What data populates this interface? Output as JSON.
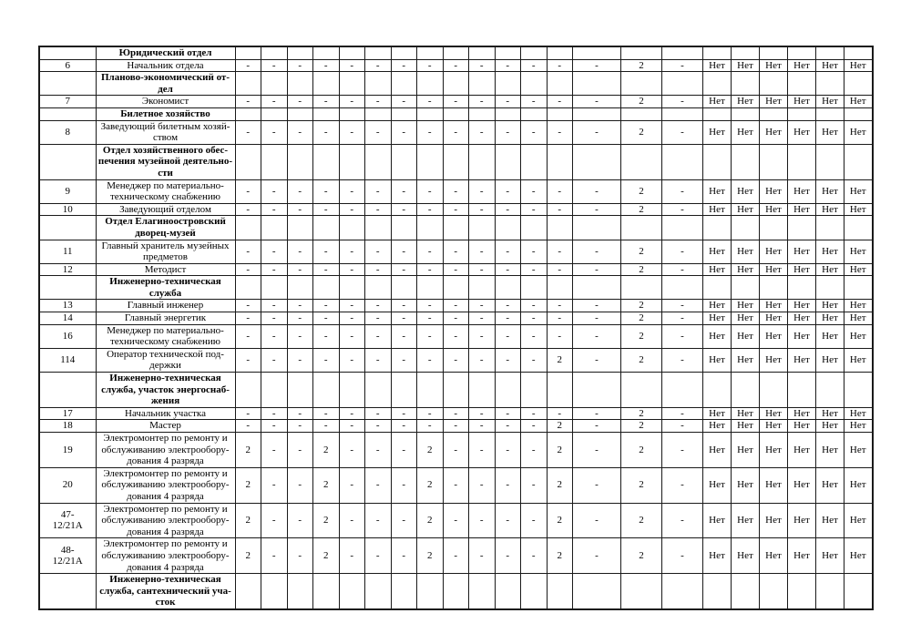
{
  "document": {
    "language": "ru",
    "kind": "staffing-schedule-table-page",
    "net_label": "Нет",
    "dash": "-"
  },
  "table": {
    "rows": [
      {
        "type": "section",
        "num": "",
        "title": "Юридический отдел",
        "cells": [
          "",
          "",
          "",
          "",
          "",
          "",
          "",
          "",
          "",
          "",
          "",
          "",
          "",
          "",
          "",
          "",
          "",
          "",
          "",
          "",
          "",
          ""
        ]
      },
      {
        "type": "data",
        "num": "6",
        "title": "Начальник отдела",
        "cells": [
          "-",
          "-",
          "-",
          "-",
          "-",
          "-",
          "-",
          "-",
          "-",
          "-",
          "-",
          "-",
          "-",
          "-",
          "2",
          "-",
          "Нет",
          "Нет",
          "Нет",
          "Нет",
          "Нет",
          "Нет"
        ]
      },
      {
        "type": "section",
        "num": "",
        "title": "Планово-экономический от-\nдел",
        "cells": [
          "",
          "",
          "",
          "",
          "",
          "",
          "",
          "",
          "",
          "",
          "",
          "",
          "",
          "",
          "",
          "",
          "",
          "",
          "",
          "",
          "",
          ""
        ]
      },
      {
        "type": "data",
        "num": "7",
        "title": "Экономист",
        "cells": [
          "-",
          "-",
          "-",
          "-",
          "-",
          "-",
          "-",
          "-",
          "-",
          "-",
          "-",
          "-",
          "-",
          "-",
          "2",
          "-",
          "Нет",
          "Нет",
          "Нет",
          "Нет",
          "Нет",
          "Нет"
        ]
      },
      {
        "type": "section",
        "num": "",
        "title": "Билетное хозяйство",
        "cells": [
          "",
          "",
          "",
          "",
          "",
          "",
          "",
          "",
          "",
          "",
          "",
          "",
          "",
          "",
          "",
          "",
          "",
          "",
          "",
          "",
          "",
          ""
        ]
      },
      {
        "type": "data",
        "num": "8",
        "title": "Заведующий билетным хозяй-\nством",
        "cells": [
          "-",
          "-",
          "-",
          "-",
          "-",
          "-",
          "-",
          "-",
          "-",
          "-",
          "-",
          "-",
          "-",
          "-",
          "2",
          "-",
          "Нет",
          "Нет",
          "Нет",
          "Нет",
          "Нет",
          "Нет"
        ]
      },
      {
        "type": "section",
        "num": "",
        "title": "Отдел хозяйственного обес-\nпечения музейной деятельно-\nсти",
        "cells": [
          "",
          "",
          "",
          "",
          "",
          "",
          "",
          "",
          "",
          "",
          "",
          "",
          "",
          "",
          "",
          "",
          "",
          "",
          "",
          "",
          "",
          ""
        ]
      },
      {
        "type": "data",
        "num": "9",
        "title": "Менеджер по материально-\nтехническому снабжению",
        "cells": [
          "-",
          "-",
          "-",
          "-",
          "-",
          "-",
          "-",
          "-",
          "-",
          "-",
          "-",
          "-",
          "-",
          "-",
          "2",
          "-",
          "Нет",
          "Нет",
          "Нет",
          "Нет",
          "Нет",
          "Нет"
        ]
      },
      {
        "type": "data",
        "num": "10",
        "title": "Заведующий отделом",
        "cells": [
          "-",
          "-",
          "-",
          "-",
          "-",
          "-",
          "-",
          "-",
          "-",
          "-",
          "-",
          "-",
          "-",
          "-",
          "2",
          "-",
          "Нет",
          "Нет",
          "Нет",
          "Нет",
          "Нет",
          "Нет"
        ]
      },
      {
        "type": "section",
        "num": "",
        "title": "Отдел Елагиноостровский\nдворец-музей",
        "cells": [
          "",
          "",
          "",
          "",
          "",
          "",
          "",
          "",
          "",
          "",
          "",
          "",
          "",
          "",
          "",
          "",
          "",
          "",
          "",
          "",
          "",
          ""
        ]
      },
      {
        "type": "data",
        "num": "11",
        "title": "Главный хранитель музейных\nпредметов",
        "cells": [
          "-",
          "-",
          "-",
          "-",
          "-",
          "-",
          "-",
          "-",
          "-",
          "-",
          "-",
          "-",
          "-",
          "-",
          "2",
          "-",
          "Нет",
          "Нет",
          "Нет",
          "Нет",
          "Нет",
          "Нет"
        ]
      },
      {
        "type": "data",
        "num": "12",
        "title": "Методист",
        "cells": [
          "-",
          "-",
          "-",
          "-",
          "-",
          "-",
          "-",
          "-",
          "-",
          "-",
          "-",
          "-",
          "-",
          "-",
          "2",
          "-",
          "Нет",
          "Нет",
          "Нет",
          "Нет",
          "Нет",
          "Нет"
        ]
      },
      {
        "type": "section",
        "num": "",
        "title": "Инженерно-техническая\nслужба",
        "cells": [
          "",
          "",
          "",
          "",
          "",
          "",
          "",
          "",
          "",
          "",
          "",
          "",
          "",
          "",
          "",
          "",
          "",
          "",
          "",
          "",
          "",
          ""
        ]
      },
      {
        "type": "data",
        "num": "13",
        "title": "Главный инженер",
        "cells": [
          "-",
          "-",
          "-",
          "-",
          "-",
          "-",
          "-",
          "-",
          "-",
          "-",
          "-",
          "-",
          "-",
          "-",
          "2",
          "-",
          "Нет",
          "Нет",
          "Нет",
          "Нет",
          "Нет",
          "Нет"
        ]
      },
      {
        "type": "data",
        "num": "14",
        "title": "Главный энергетик",
        "cells": [
          "-",
          "-",
          "-",
          "-",
          "-",
          "-",
          "-",
          "-",
          "-",
          "-",
          "-",
          "-",
          "-",
          "-",
          "2",
          "-",
          "Нет",
          "Нет",
          "Нет",
          "Нет",
          "Нет",
          "Нет"
        ]
      },
      {
        "type": "data",
        "num": "16",
        "title": "Менеджер по материально-\nтехническому снабжению",
        "cells": [
          "-",
          "-",
          "-",
          "-",
          "-",
          "-",
          "-",
          "-",
          "-",
          "-",
          "-",
          "-",
          "-",
          "-",
          "2",
          "-",
          "Нет",
          "Нет",
          "Нет",
          "Нет",
          "Нет",
          "Нет"
        ]
      },
      {
        "type": "data",
        "num": "114",
        "title": "Оператор технической под-\nдержки",
        "cells": [
          "-",
          "-",
          "-",
          "-",
          "-",
          "-",
          "-",
          "-",
          "-",
          "-",
          "-",
          "-",
          "2",
          "-",
          "2",
          "-",
          "Нет",
          "Нет",
          "Нет",
          "Нет",
          "Нет",
          "Нет"
        ]
      },
      {
        "type": "section",
        "num": "",
        "title": "Инженерно-техническая\nслужба, участок энергоснаб-\nжения",
        "cells": [
          "",
          "",
          "",
          "",
          "",
          "",
          "",
          "",
          "",
          "",
          "",
          "",
          "",
          "",
          "",
          "",
          "",
          "",
          "",
          "",
          "",
          ""
        ]
      },
      {
        "type": "data",
        "num": "17",
        "title": "Начальник участка",
        "cells": [
          "-",
          "-",
          "-",
          "-",
          "-",
          "-",
          "-",
          "-",
          "-",
          "-",
          "-",
          "-",
          "-",
          "-",
          "2",
          "-",
          "Нет",
          "Нет",
          "Нет",
          "Нет",
          "Нет",
          "Нет"
        ]
      },
      {
        "type": "data",
        "num": "18",
        "title": "Мастер",
        "cells": [
          "-",
          "-",
          "-",
          "-",
          "-",
          "-",
          "-",
          "-",
          "-",
          "-",
          "-",
          "-",
          "2",
          "-",
          "2",
          "-",
          "Нет",
          "Нет",
          "Нет",
          "Нет",
          "Нет",
          "Нет"
        ]
      },
      {
        "type": "data",
        "num": "19",
        "title": "Электромонтер по ремонту и\nобслуживанию электрообору-\nдования 4 разряда",
        "cells": [
          "2",
          "-",
          "-",
          "2",
          "-",
          "-",
          "-",
          "2",
          "-",
          "-",
          "-",
          "-",
          "2",
          "-",
          "2",
          "-",
          "Нет",
          "Нет",
          "Нет",
          "Нет",
          "Нет",
          "Нет"
        ]
      },
      {
        "type": "data",
        "num": "20",
        "title": "Электромонтер по ремонту и\nобслуживанию электрообору-\nдования 4 разряда",
        "cells": [
          "2",
          "-",
          "-",
          "2",
          "-",
          "-",
          "-",
          "2",
          "-",
          "-",
          "-",
          "-",
          "2",
          "-",
          "2",
          "-",
          "Нет",
          "Нет",
          "Нет",
          "Нет",
          "Нет",
          "Нет"
        ]
      },
      {
        "type": "data",
        "num": "47-\n12/21А",
        "title": "Электромонтер по ремонту и\nобслуживанию электрообору-\nдования 4 разряда",
        "cells": [
          "2",
          "-",
          "-",
          "2",
          "-",
          "-",
          "-",
          "2",
          "-",
          "-",
          "-",
          "-",
          "2",
          "-",
          "2",
          "-",
          "Нет",
          "Нет",
          "Нет",
          "Нет",
          "Нет",
          "Нет"
        ]
      },
      {
        "type": "data",
        "num": "48-\n12/21А",
        "title": "Электромонтер по ремонту и\nобслуживанию электрообору-\nдования 4 разряда",
        "cells": [
          "2",
          "-",
          "-",
          "2",
          "-",
          "-",
          "-",
          "2",
          "-",
          "-",
          "-",
          "-",
          "2",
          "-",
          "2",
          "-",
          "Нет",
          "Нет",
          "Нет",
          "Нет",
          "Нет",
          "Нет"
        ]
      },
      {
        "type": "section",
        "num": "",
        "title": "Инженерно-техническая\nслужба, сантехнический уча-\nсток",
        "cells": [
          "",
          "",
          "",
          "",
          "",
          "",
          "",
          "",
          "",
          "",
          "",
          "",
          "",
          "",
          "",
          "",
          "",
          "",
          "",
          "",
          "",
          ""
        ]
      }
    ]
  }
}
